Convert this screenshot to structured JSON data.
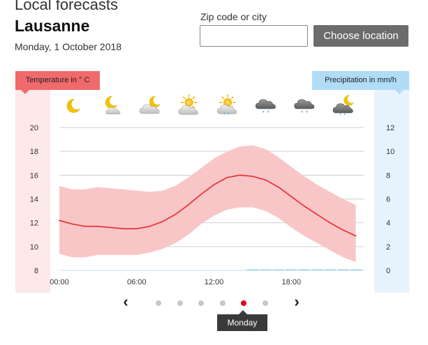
{
  "header": {
    "title": "Local forecasts",
    "city": "Lausanne",
    "date": "Monday, 1 October 2018"
  },
  "search": {
    "label": "Zip code or city",
    "value": "",
    "placeholder": "",
    "button_label": "Choose location"
  },
  "chart_data": {
    "type": "line",
    "left_axis_title": "Temperature in ° C",
    "right_axis_title": "Precipitation in mm/h",
    "x_tick_labels": [
      "00:00",
      "06:00",
      "12:00",
      "18:00"
    ],
    "x_ticks_hours": [
      0,
      6,
      12,
      18
    ],
    "y_left_ticks": [
      8,
      10,
      12,
      14,
      16,
      18,
      20
    ],
    "y_left_range": [
      8,
      20
    ],
    "y_right_ticks": [
      0,
      2,
      4,
      6,
      8,
      10,
      12
    ],
    "y_right_range": [
      0,
      12
    ],
    "grid": true,
    "colors": {
      "line": "#e5393f",
      "band": "#f9c6c7",
      "precip": "#a9d7ef"
    },
    "series": [
      {
        "kind": "temperature",
        "x_hours": [
          0,
          1,
          2,
          3,
          4,
          5,
          6,
          7,
          8,
          9,
          10,
          11,
          12,
          13,
          14,
          15,
          16,
          17,
          18,
          19,
          20,
          21,
          22,
          23
        ],
        "values": [
          12.2,
          11.9,
          11.7,
          11.7,
          11.6,
          11.5,
          11.5,
          11.7,
          12.1,
          12.7,
          13.5,
          14.4,
          15.2,
          15.8,
          16.0,
          15.9,
          15.6,
          15.0,
          14.2,
          13.4,
          12.7,
          12.0,
          11.4,
          10.9
        ],
        "min": [
          9.4,
          9.1,
          9.1,
          9.3,
          9.3,
          9.3,
          9.3,
          9.5,
          9.8,
          10.3,
          11.0,
          11.9,
          12.6,
          13.1,
          13.3,
          13.3,
          13.0,
          12.4,
          11.6,
          10.9,
          10.3,
          9.7,
          9.1,
          8.7
        ],
        "max": [
          15.1,
          14.8,
          14.8,
          15.0,
          14.9,
          14.8,
          14.7,
          14.6,
          14.7,
          15.1,
          15.8,
          16.6,
          17.4,
          18.0,
          18.4,
          18.5,
          18.2,
          17.5,
          16.7,
          15.9,
          15.2,
          14.6,
          14.0,
          13.5
        ]
      },
      {
        "kind": "precipitation",
        "x_hours": [
          15,
          16,
          17,
          18,
          19,
          20,
          21,
          22,
          23
        ],
        "values": [
          0.1,
          0.1,
          0.1,
          0.1,
          0.1,
          0.1,
          0.1,
          0.1,
          0.1
        ]
      }
    ],
    "weather_icons": [
      {
        "hour": 1,
        "icon": "moon-icon"
      },
      {
        "hour": 4,
        "icon": "moon-cloud-icon"
      },
      {
        "hour": 7,
        "icon": "moon-cloudy-icon"
      },
      {
        "hour": 10,
        "icon": "sun-cloudy-icon"
      },
      {
        "hour": 13,
        "icon": "sun-cloud-drizzle-icon"
      },
      {
        "hour": 16,
        "icon": "dark-cloud-rain-icon"
      },
      {
        "hour": 19,
        "icon": "dark-cloud-rain-icon"
      },
      {
        "hour": 22,
        "icon": "moon-dark-cloud-rain-icon"
      }
    ]
  },
  "carousel": {
    "day_count": 6,
    "active_index": 4,
    "active_label": "Monday"
  }
}
